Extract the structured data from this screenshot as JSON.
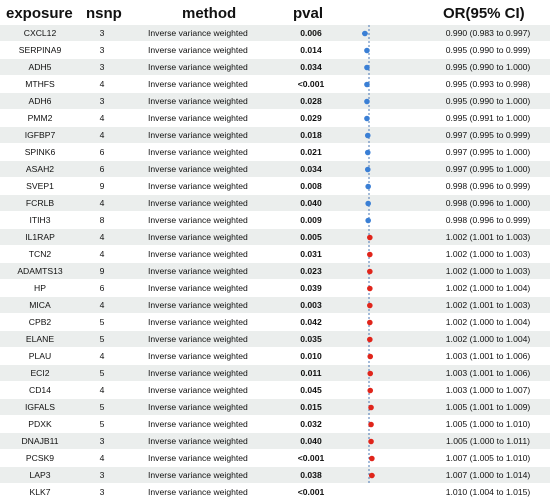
{
  "headers": {
    "exposure": "exposure",
    "nsnp": "nsnp",
    "method": "method",
    "pval": "pval",
    "or": "OR(95% CI)"
  },
  "rows": [
    {
      "exposure": "CXCL12",
      "nsnp": "3",
      "method": "Inverse variance weighted",
      "pval": "0.006",
      "or": "0.990 (0.983 to 0.997)"
    },
    {
      "exposure": "SERPINA9",
      "nsnp": "3",
      "method": "Inverse variance weighted",
      "pval": "0.014",
      "or": "0.995 (0.990 to 0.999)"
    },
    {
      "exposure": "ADH5",
      "nsnp": "3",
      "method": "Inverse variance weighted",
      "pval": "0.034",
      "or": "0.995 (0.990 to 1.000)"
    },
    {
      "exposure": "MTHFS",
      "nsnp": "4",
      "method": "Inverse variance weighted",
      "pval": "<0.001",
      "or": "0.995 (0.993 to 0.998)"
    },
    {
      "exposure": "ADH6",
      "nsnp": "3",
      "method": "Inverse variance weighted",
      "pval": "0.028",
      "or": "0.995 (0.990 to 1.000)"
    },
    {
      "exposure": "PMM2",
      "nsnp": "4",
      "method": "Inverse variance weighted",
      "pval": "0.029",
      "or": "0.995 (0.991 to 1.000)"
    },
    {
      "exposure": "IGFBP7",
      "nsnp": "4",
      "method": "Inverse variance weighted",
      "pval": "0.018",
      "or": "0.997 (0.995 to 0.999)"
    },
    {
      "exposure": "SPINK6",
      "nsnp": "6",
      "method": "Inverse variance weighted",
      "pval": "0.021",
      "or": "0.997 (0.995 to 1.000)"
    },
    {
      "exposure": "ASAH2",
      "nsnp": "6",
      "method": "Inverse variance weighted",
      "pval": "0.034",
      "or": "0.997 (0.995 to 1.000)"
    },
    {
      "exposure": "SVEP1",
      "nsnp": "9",
      "method": "Inverse variance weighted",
      "pval": "0.008",
      "or": "0.998 (0.996 to 0.999)"
    },
    {
      "exposure": "FCRLB",
      "nsnp": "4",
      "method": "Inverse variance weighted",
      "pval": "0.040",
      "or": "0.998 (0.996 to 1.000)"
    },
    {
      "exposure": "ITIH3",
      "nsnp": "8",
      "method": "Inverse variance weighted",
      "pval": "0.009",
      "or": "0.998 (0.996 to 0.999)"
    },
    {
      "exposure": "IL1RAP",
      "nsnp": "4",
      "method": "Inverse variance weighted",
      "pval": "0.005",
      "or": "1.002 (1.001 to 1.003)"
    },
    {
      "exposure": "TCN2",
      "nsnp": "4",
      "method": "Inverse variance weighted",
      "pval": "0.031",
      "or": "1.002 (1.000 to 1.003)"
    },
    {
      "exposure": "ADAMTS13",
      "nsnp": "9",
      "method": "Inverse variance weighted",
      "pval": "0.023",
      "or": "1.002 (1.000 to 1.003)"
    },
    {
      "exposure": "HP",
      "nsnp": "6",
      "method": "Inverse variance weighted",
      "pval": "0.039",
      "or": "1.002 (1.000 to 1.004)"
    },
    {
      "exposure": "MICA",
      "nsnp": "4",
      "method": "Inverse variance weighted",
      "pval": "0.003",
      "or": "1.002 (1.001 to 1.003)"
    },
    {
      "exposure": "CPB2",
      "nsnp": "5",
      "method": "Inverse variance weighted",
      "pval": "0.042",
      "or": "1.002 (1.000 to 1.004)"
    },
    {
      "exposure": "ELANE",
      "nsnp": "5",
      "method": "Inverse variance weighted",
      "pval": "0.035",
      "or": "1.002 (1.000 to 1.004)"
    },
    {
      "exposure": "PLAU",
      "nsnp": "4",
      "method": "Inverse variance weighted",
      "pval": "0.010",
      "or": "1.003 (1.001 to 1.006)"
    },
    {
      "exposure": "ECI2",
      "nsnp": "5",
      "method": "Inverse variance weighted",
      "pval": "0.011",
      "or": "1.003 (1.001 to 1.006)"
    },
    {
      "exposure": "CD14",
      "nsnp": "4",
      "method": "Inverse variance weighted",
      "pval": "0.045",
      "or": "1.003 (1.000 to 1.007)"
    },
    {
      "exposure": "IGFALS",
      "nsnp": "5",
      "method": "Inverse variance weighted",
      "pval": "0.015",
      "or": "1.005 (1.001 to 1.009)"
    },
    {
      "exposure": "PDXK",
      "nsnp": "5",
      "method": "Inverse variance weighted",
      "pval": "0.032",
      "or": "1.005 (1.000 to 1.010)"
    },
    {
      "exposure": "DNAJB11",
      "nsnp": "3",
      "method": "Inverse variance weighted",
      "pval": "0.040",
      "or": "1.005 (1.000 to 1.011)"
    },
    {
      "exposure": "PCSK9",
      "nsnp": "4",
      "method": "Inverse variance weighted",
      "pval": "<0.001",
      "or": "1.007 (1.005 to 1.010)"
    },
    {
      "exposure": "LAP3",
      "nsnp": "3",
      "method": "Inverse variance weighted",
      "pval": "0.038",
      "or": "1.007 (1.000 to 1.014)"
    },
    {
      "exposure": "KLK7",
      "nsnp": "3",
      "method": "Inverse variance weighted",
      "pval": "<0.001",
      "or": "1.010 (1.004 to 1.015)"
    }
  ],
  "chart_data": {
    "type": "scatter",
    "xlim": [
      0.9,
      1.1
    ],
    "xticks": [
      "0.9",
      "1",
      "1.1"
    ],
    "reference_line": 1,
    "reference_line_style": "dashed",
    "colors": {
      "protective": "#3a7fd5",
      "risk": "#e0251b"
    },
    "points": [
      {
        "label": "CXCL12",
        "or": 0.99,
        "lo": 0.983,
        "hi": 0.997
      },
      {
        "label": "SERPINA9",
        "or": 0.995,
        "lo": 0.99,
        "hi": 0.999
      },
      {
        "label": "ADH5",
        "or": 0.995,
        "lo": 0.99,
        "hi": 1.0
      },
      {
        "label": "MTHFS",
        "or": 0.995,
        "lo": 0.993,
        "hi": 0.998
      },
      {
        "label": "ADH6",
        "or": 0.995,
        "lo": 0.99,
        "hi": 1.0
      },
      {
        "label": "PMM2",
        "or": 0.995,
        "lo": 0.991,
        "hi": 1.0
      },
      {
        "label": "IGFBP7",
        "or": 0.997,
        "lo": 0.995,
        "hi": 0.999
      },
      {
        "label": "SPINK6",
        "or": 0.997,
        "lo": 0.995,
        "hi": 1.0
      },
      {
        "label": "ASAH2",
        "or": 0.997,
        "lo": 0.995,
        "hi": 1.0
      },
      {
        "label": "SVEP1",
        "or": 0.998,
        "lo": 0.996,
        "hi": 0.999
      },
      {
        "label": "FCRLB",
        "or": 0.998,
        "lo": 0.996,
        "hi": 1.0
      },
      {
        "label": "ITIH3",
        "or": 0.998,
        "lo": 0.996,
        "hi": 0.999
      },
      {
        "label": "IL1RAP",
        "or": 1.002,
        "lo": 1.001,
        "hi": 1.003
      },
      {
        "label": "TCN2",
        "or": 1.002,
        "lo": 1.0,
        "hi": 1.003
      },
      {
        "label": "ADAMTS13",
        "or": 1.002,
        "lo": 1.0,
        "hi": 1.003
      },
      {
        "label": "HP",
        "or": 1.002,
        "lo": 1.0,
        "hi": 1.004
      },
      {
        "label": "MICA",
        "or": 1.002,
        "lo": 1.001,
        "hi": 1.003
      },
      {
        "label": "CPB2",
        "or": 1.002,
        "lo": 1.0,
        "hi": 1.004
      },
      {
        "label": "ELANE",
        "or": 1.002,
        "lo": 1.0,
        "hi": 1.004
      },
      {
        "label": "PLAU",
        "or": 1.003,
        "lo": 1.001,
        "hi": 1.006
      },
      {
        "label": "ECI2",
        "or": 1.003,
        "lo": 1.001,
        "hi": 1.006
      },
      {
        "label": "CD14",
        "or": 1.003,
        "lo": 1.0,
        "hi": 1.007
      },
      {
        "label": "IGFALS",
        "or": 1.005,
        "lo": 1.001,
        "hi": 1.009
      },
      {
        "label": "PDXK",
        "or": 1.005,
        "lo": 1.0,
        "hi": 1.01
      },
      {
        "label": "DNAJB11",
        "or": 1.005,
        "lo": 1.0,
        "hi": 1.011
      },
      {
        "label": "PCSK9",
        "or": 1.007,
        "lo": 1.005,
        "hi": 1.01
      },
      {
        "label": "LAP3",
        "or": 1.007,
        "lo": 1.0,
        "hi": 1.014
      },
      {
        "label": "KLK7",
        "or": 1.01,
        "lo": 1.004,
        "hi": 1.015
      }
    ]
  }
}
